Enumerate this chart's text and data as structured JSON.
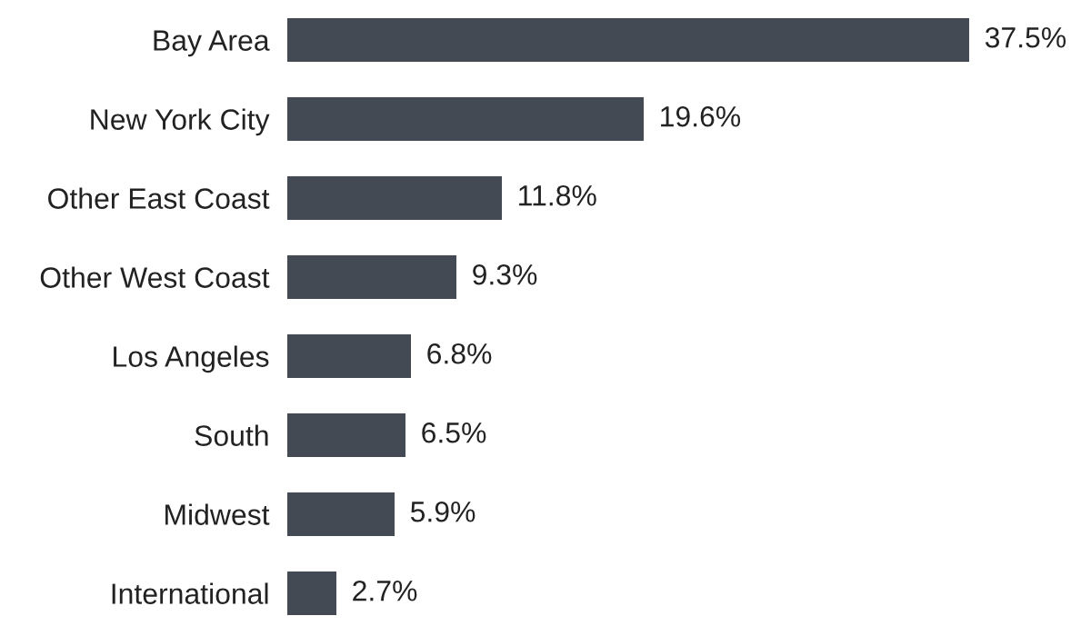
{
  "chart_data": {
    "type": "bar",
    "orientation": "horizontal",
    "categories": [
      "Bay Area",
      "New York City",
      "Other East Coast",
      "Other West Coast",
      "Los Angeles",
      "South",
      "Midwest",
      "International"
    ],
    "values": [
      37.5,
      19.6,
      11.8,
      9.3,
      6.8,
      6.5,
      5.9,
      2.7
    ],
    "value_labels": [
      "37.5%",
      "19.6%",
      "11.8%",
      "9.3%",
      "6.8%",
      "6.5%",
      "5.9%",
      "2.7%"
    ],
    "color": "#434a54",
    "grid": false,
    "legend": false,
    "tick_labels": "y"
  }
}
